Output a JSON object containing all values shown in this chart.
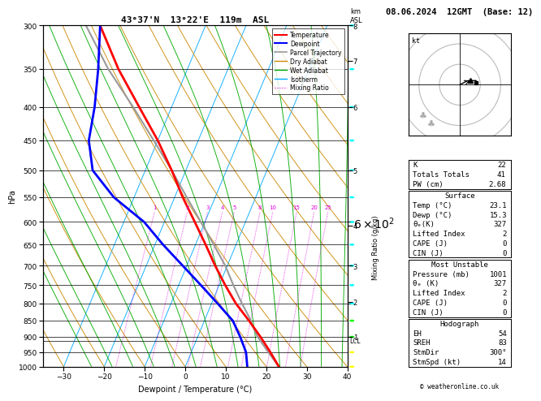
{
  "title_left": "43°37'N  13°22'E  119m  ASL",
  "title_right": "08.06.2024  12GMT  (Base: 12)",
  "xlabel": "Dewpoint / Temperature (°C)",
  "ylabel_left": "hPa",
  "xlim": [
    -35,
    40
  ],
  "pressure_levels": [
    300,
    350,
    400,
    450,
    500,
    550,
    600,
    650,
    700,
    750,
    800,
    850,
    900,
    950,
    1000
  ],
  "temp_profile": {
    "pressure": [
      1000,
      950,
      900,
      850,
      800,
      750,
      700,
      650,
      600,
      550,
      500,
      450,
      400,
      350,
      300
    ],
    "temperature": [
      23.1,
      19.5,
      15.5,
      11.0,
      6.0,
      1.5,
      -3.0,
      -7.5,
      -12.5,
      -18.0,
      -23.5,
      -30.0,
      -38.0,
      -47.0,
      -56.0
    ]
  },
  "dewpoint_profile": {
    "pressure": [
      1000,
      950,
      900,
      850,
      800,
      750,
      700,
      650,
      600,
      550,
      500,
      450,
      400,
      350,
      300
    ],
    "dewpoint": [
      15.3,
      13.5,
      10.5,
      7.0,
      1.5,
      -4.5,
      -11.0,
      -18.0,
      -25.0,
      -35.0,
      -43.0,
      -47.0,
      -49.0,
      -52.0,
      -56.0
    ]
  },
  "parcel_profile": {
    "pressure": [
      1000,
      950,
      900,
      860,
      850,
      800,
      750,
      700,
      650,
      600,
      550,
      500,
      450,
      400,
      350,
      300
    ],
    "temperature": [
      23.1,
      19.0,
      14.8,
      12.0,
      11.5,
      7.5,
      3.5,
      -0.5,
      -5.5,
      -11.0,
      -17.0,
      -23.5,
      -31.0,
      -39.5,
      -49.5,
      -59.5
    ]
  },
  "lcl_pressure": 912,
  "colors": {
    "temperature": "#ff0000",
    "dewpoint": "#0000ff",
    "parcel": "#999999",
    "dry_adiabat": "#cc8800",
    "wet_adiabat": "#00aa00",
    "isotherm": "#00aaff",
    "mixing_ratio": "#dd00dd",
    "background": "#ffffff",
    "grid": "#000000"
  },
  "mixing_ratio_lines": [
    1,
    2,
    3,
    4,
    5,
    8,
    10,
    15,
    20,
    25
  ],
  "km_ticks": [
    1,
    2,
    3,
    4,
    5,
    6,
    7,
    8
  ],
  "km_pressures": [
    900,
    795,
    700,
    608,
    500,
    400,
    340,
    300
  ],
  "wind_barbs": {
    "colors": {
      "300": "#00ffff",
      "350": "#00ffff",
      "400": "#00ffff",
      "450": "#00ffff",
      "500": "#00ffff",
      "550": "#00ffff",
      "600": "#00ffff",
      "650": "#00ffff",
      "700": "#00ffff",
      "750": "#00ffff",
      "800": "#00ffff",
      "850": "#00ff00",
      "900": "#00ff00",
      "950": "#ffff00",
      "1000": "#ffff00"
    }
  },
  "stats": {
    "K": "22",
    "Totals_Totals": "41",
    "PW_cm": "2.68",
    "Surface_Temp": "23.1",
    "Surface_Dewp": "15.3",
    "Surface_theta_e": "327",
    "Surface_LI": "2",
    "Surface_CAPE": "0",
    "Surface_CIN": "0",
    "MU_Pressure": "1001",
    "MU_theta_e": "327",
    "MU_LI": "2",
    "MU_CAPE": "0",
    "MU_CIN": "0",
    "EH": "54",
    "SREH": "83",
    "StmDir": "300°",
    "StmSpd_kt": "14"
  }
}
